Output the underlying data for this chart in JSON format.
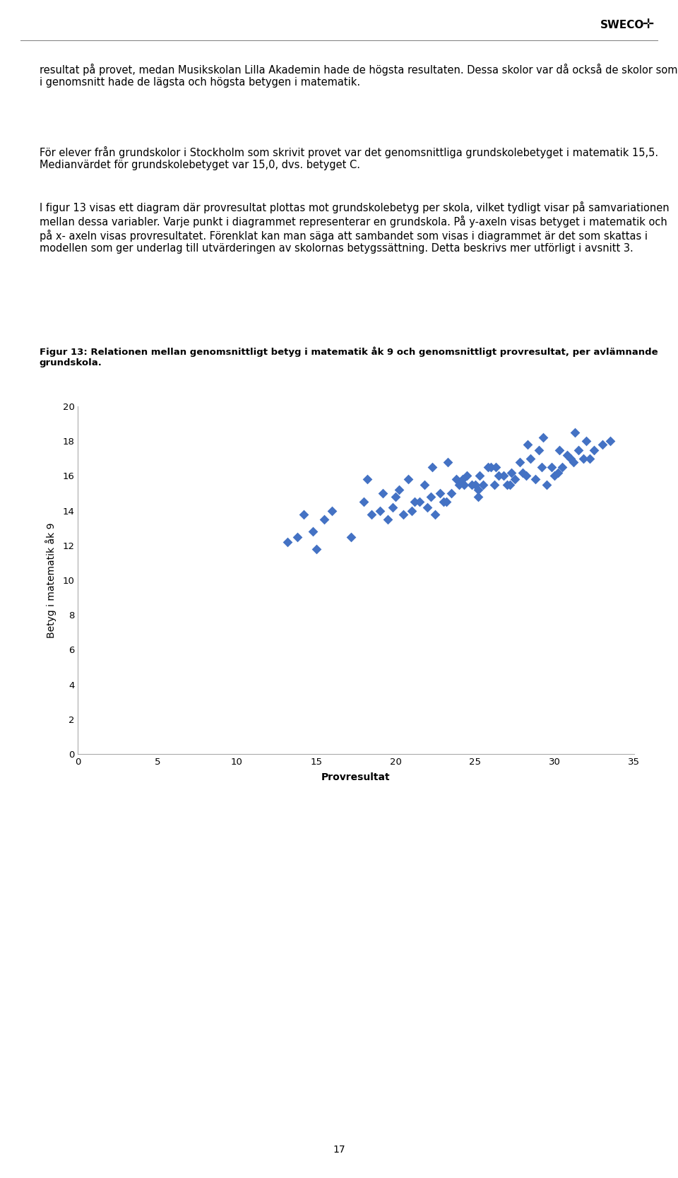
{
  "xlabel": "Provresultat",
  "ylabel": "Betyg i matematik åk 9",
  "scatter_color": "#4472C4",
  "xlim": [
    0,
    35
  ],
  "ylim": [
    0,
    20
  ],
  "xticks": [
    0,
    5,
    10,
    15,
    20,
    25,
    30,
    35
  ],
  "yticks": [
    0,
    2,
    4,
    6,
    8,
    10,
    12,
    14,
    16,
    18,
    20
  ],
  "scatter_x": [
    14.2,
    13.8,
    15.0,
    13.2,
    14.8,
    15.5,
    16.0,
    17.2,
    18.0,
    18.5,
    19.0,
    19.5,
    19.8,
    20.0,
    20.5,
    21.0,
    21.5,
    22.0,
    22.5,
    23.0,
    23.5,
    24.0,
    24.5,
    25.0,
    25.2,
    25.5,
    26.0,
    26.5,
    27.0,
    27.5,
    28.0,
    28.5,
    29.0,
    29.5,
    30.0,
    30.5,
    31.0,
    31.5,
    32.0,
    32.5,
    33.0,
    33.5,
    18.2,
    19.2,
    20.2,
    21.2,
    22.2,
    23.2,
    24.2,
    25.2,
    26.2,
    27.2,
    28.2,
    29.2,
    30.2,
    31.2,
    32.2,
    20.8,
    21.8,
    22.8,
    23.8,
    24.8,
    25.8,
    26.8,
    27.8,
    28.8,
    29.8,
    30.8,
    31.8,
    22.3,
    23.3,
    24.3,
    25.3,
    26.3,
    27.3,
    28.3,
    29.3,
    30.3,
    31.3
  ],
  "scatter_y": [
    13.8,
    12.5,
    11.8,
    12.2,
    12.8,
    13.5,
    14.0,
    12.5,
    14.5,
    13.8,
    14.0,
    13.5,
    14.2,
    14.8,
    13.8,
    14.0,
    14.5,
    14.2,
    13.8,
    14.5,
    15.0,
    15.5,
    16.0,
    15.5,
    14.8,
    15.5,
    16.5,
    16.0,
    15.5,
    15.8,
    16.2,
    17.0,
    17.5,
    15.5,
    16.0,
    16.5,
    17.0,
    17.5,
    18.0,
    17.5,
    17.8,
    18.0,
    15.8,
    15.0,
    15.2,
    14.5,
    14.8,
    14.5,
    15.8,
    15.2,
    15.5,
    15.5,
    16.0,
    16.5,
    16.2,
    16.8,
    17.0,
    15.8,
    15.5,
    15.0,
    15.8,
    15.5,
    16.5,
    16.0,
    16.8,
    15.8,
    16.5,
    17.2,
    17.0,
    16.5,
    16.8,
    15.5,
    16.0,
    16.5,
    16.2,
    17.8,
    18.2,
    17.5,
    18.5
  ],
  "fig_caption": "Figur 13: Relationen mellan genomsnittligt betyg i matematik åk 9 och genomsnittligt provresultat, per avlämnande grundskola.",
  "text1": "resultat på provet, medan Musikskolan Lilla Akademin hade de högsta resultaten. Dessa skolor var då också de skolor som i genomsnitt hade de lägsta och högsta betygen i matematik.",
  "text2": "För elever från grundskolor i Stockholm som skrivit provet var det genomsnittliga grundskolebetyget i matematik 15,5. Medianvärdet för grundskolebetyget var 15,0, dvs. betyget C.",
  "text3": "I figur 13 visas ett diagram där provresultat plottas mot grundskolebetyg per skola, vilket tydligt visar på samvariationen mellan dessa variabler. Varje punkt i diagrammet representerar en grundskola. På y-axeln visas betyget i matematik och på x- axeln visas provresultatet. Förenklat kan man säga att sambandet som visas i diagrammet är det som skattas i modellen som ger underlag till utvärderingen av skolornas betygssättning. Detta beskrivs mer utförligt i avsnitt 3.",
  "page_number": "17",
  "background_color": "#ffffff",
  "marker_size": 7,
  "body_fontsize": 10.5,
  "caption_fontsize": 9.5,
  "axis_label_fontsize": 10,
  "tick_fontsize": 9.5,
  "sweco_fontsize": 11
}
